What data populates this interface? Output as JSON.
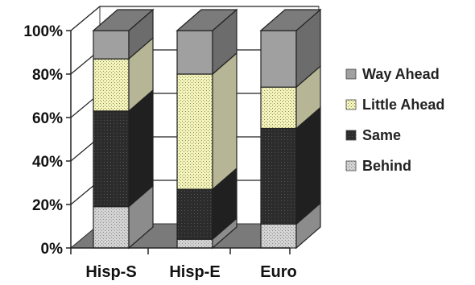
{
  "chart_data": {
    "type": "bar",
    "stacked": true,
    "three_d": true,
    "percent_stacked": true,
    "categories": [
      "Hisp-S",
      "Hisp-E",
      "Euro"
    ],
    "yticks": [
      "0%",
      "20%",
      "40%",
      "60%",
      "80%",
      "100%"
    ],
    "ylim": [
      0,
      100
    ],
    "grid": true,
    "legend_position": "right",
    "series": [
      {
        "name": "Behind",
        "values": [
          19,
          4,
          11
        ],
        "color": "#c8c8c8"
      },
      {
        "name": "Same",
        "values": [
          44,
          23,
          44
        ],
        "color": "#2e2e2e"
      },
      {
        "name": "Little Ahead",
        "values": [
          24,
          53,
          19
        ],
        "color": "#f2f2c8"
      },
      {
        "name": "Way Ahead",
        "values": [
          13,
          20,
          26
        ],
        "color": "#9a9a9a"
      }
    ]
  }
}
